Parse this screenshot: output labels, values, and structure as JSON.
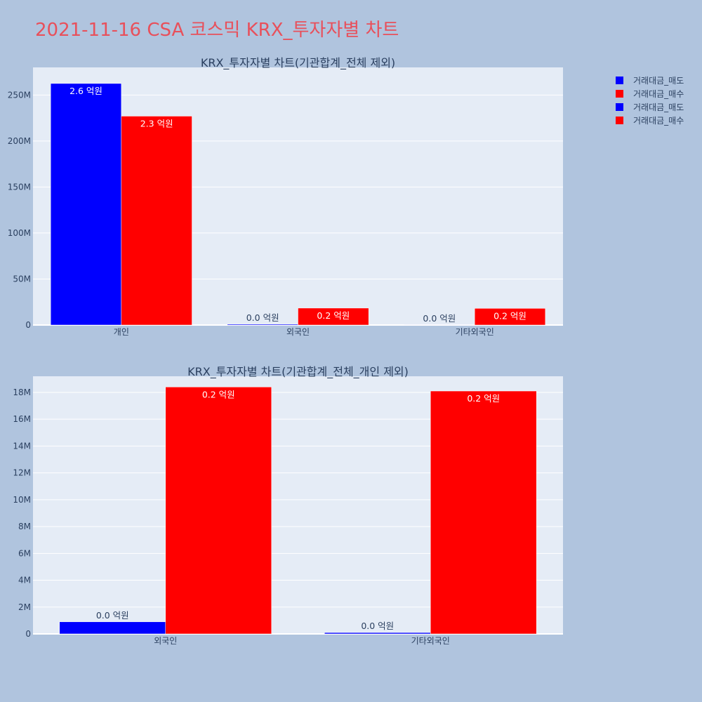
{
  "page": {
    "title": "2021-11-16 CSA 코스믹 KRX_투자자별 차트",
    "title_color": "#e8505b",
    "background": "#b0c4de",
    "plot_background": "#e5ecf6"
  },
  "chart_data": [
    {
      "type": "bar",
      "title": "KRX_투자자별 차트(기관합계_전체 제외)",
      "categories": [
        "개인",
        "외국인",
        "기타외국인"
      ],
      "series": [
        {
          "name": "거래대금_매도",
          "color": "#0000ff",
          "values": [
            262500000,
            900000,
            100000
          ],
          "labels": [
            "2.6 억원",
            "0.0 억원",
            "0.0 억원"
          ]
        },
        {
          "name": "거래대금_매수",
          "color": "#ff0000",
          "values": [
            227000000,
            18400000,
            18100000
          ],
          "labels": [
            "2.3 억원",
            "0.2 억원",
            "0.2 억원"
          ]
        }
      ],
      "ylim": [
        0,
        280000000
      ],
      "yticks": [
        0,
        50000000,
        100000000,
        150000000,
        200000000,
        250000000
      ],
      "ytick_labels": [
        "0",
        "50M",
        "100M",
        "150M",
        "200M",
        "250M"
      ],
      "grid": true
    },
    {
      "type": "bar",
      "title": "KRX_투자자별 차트(기관합계_전체_개인 제외)",
      "categories": [
        "외국인",
        "기타외국인"
      ],
      "series": [
        {
          "name": "거래대금_매도",
          "color": "#0000ff",
          "values": [
            900000,
            100000
          ],
          "labels": [
            "0.0 억원",
            "0.0 억원"
          ]
        },
        {
          "name": "거래대금_매수",
          "color": "#ff0000",
          "values": [
            18400000,
            18100000
          ],
          "labels": [
            "0.2 억원",
            "0.2 억원"
          ]
        }
      ],
      "ylim": [
        0,
        19200000
      ],
      "yticks": [
        0,
        2000000,
        4000000,
        6000000,
        8000000,
        10000000,
        12000000,
        14000000,
        16000000,
        18000000
      ],
      "ytick_labels": [
        "0",
        "2M",
        "4M",
        "6M",
        "8M",
        "10M",
        "12M",
        "14M",
        "16M",
        "18M"
      ],
      "grid": true
    }
  ],
  "legend": {
    "placement": "top-right",
    "items": [
      {
        "label": "거래대금_매도",
        "color": "#0000ff"
      },
      {
        "label": "거래대금_매수",
        "color": "#ff0000"
      },
      {
        "label": "거래대금_매도",
        "color": "#0000ff"
      },
      {
        "label": "거래대금_매수",
        "color": "#ff0000"
      }
    ]
  }
}
